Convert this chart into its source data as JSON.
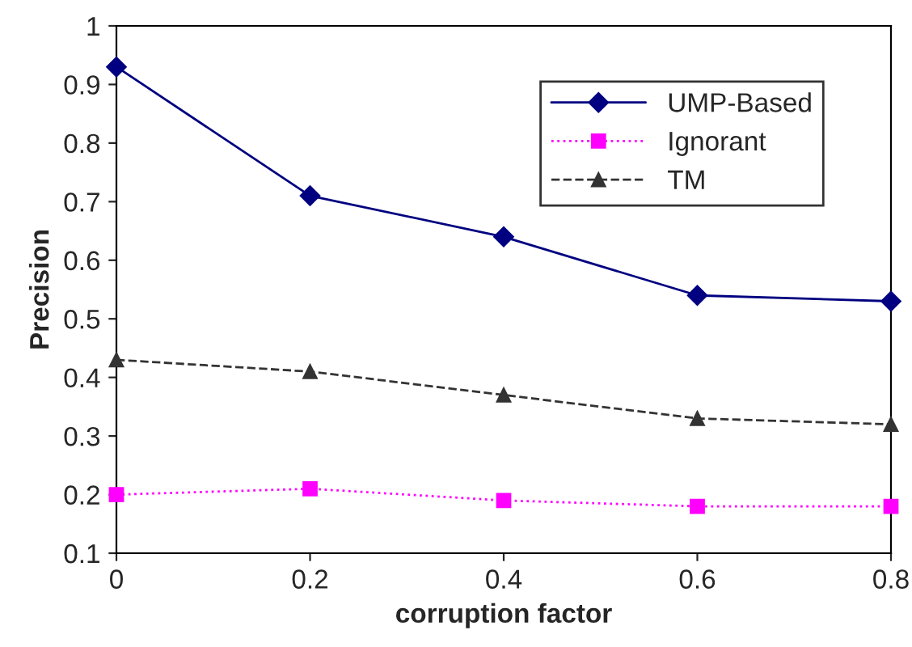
{
  "chart_data": {
    "type": "line",
    "xlabel": "corruption factor",
    "ylabel": "Precision",
    "x": [
      0,
      0.2,
      0.4,
      0.6,
      0.8
    ],
    "xlim": [
      0,
      0.8
    ],
    "xticks": [
      0,
      0.2,
      0.4,
      0.6,
      0.8
    ],
    "ylim": [
      0.1,
      1
    ],
    "yticks": [
      0.1,
      0.2,
      0.3,
      0.4,
      0.5,
      0.6,
      0.7,
      0.8,
      0.9,
      1
    ],
    "grid": false,
    "legend": "top right",
    "series": [
      {
        "name": "UMP-Based",
        "color": "#000080",
        "marker": "diamond",
        "line_style": "solid",
        "values": [
          0.93,
          0.71,
          0.64,
          0.54,
          0.53
        ]
      },
      {
        "name": "Ignorant",
        "color": "#ff00ff",
        "marker": "square",
        "line_style": "dotted",
        "values": [
          0.2,
          0.21,
          0.19,
          0.18,
          0.18
        ]
      },
      {
        "name": "TM",
        "color": "#333333",
        "marker": "triangle",
        "line_style": "dashed",
        "values": [
          0.43,
          0.41,
          0.37,
          0.33,
          0.32
        ]
      }
    ]
  }
}
